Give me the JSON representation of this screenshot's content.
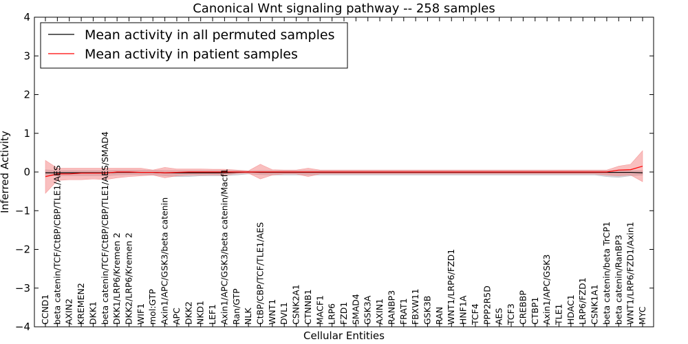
{
  "chart_data": {
    "type": "line",
    "title": "Canonical Wnt signaling pathway -- 258 samples",
    "xlabel": "Cellular Entities",
    "ylabel": "Inferred Activity",
    "ylim": [
      -4,
      4
    ],
    "yticks": [
      -4,
      -3,
      -2,
      -1,
      0,
      1,
      2,
      3,
      4
    ],
    "ytick_labels": [
      "−4",
      "−3",
      "−2",
      "−1",
      "0",
      "1",
      "2",
      "3",
      "4"
    ],
    "grid": false,
    "legend_position": "top-left",
    "categories": [
      "CCND1",
      "beta catenin/TCF/CtBP/CBP/TLE1/AES",
      "AXIN2",
      "KREMEN2",
      "DKK1",
      "beta catenin/TCF/CtBP/CBP/TLE1/AES/SMAD4",
      "DKK1/LRP6/Kremen 2",
      "DKK2/LRP6/Kremen 2",
      "WIF1",
      "mol:GTP",
      "Axin1/APC/GSK3/beta catenin",
      "APC",
      "DKK2",
      "NKD1",
      "LEF1",
      "Axin1/APC/GSK3/beta catenin/Macf1",
      "Ran/GTP",
      "NLK",
      "CtBP/CBP/TCF/TLE1/AES",
      "WNT1",
      "DVL1",
      "CSNK2A1",
      "CTNNB1",
      "MACF1",
      "LRP6",
      "FZD1",
      "SMAD4",
      "GSK3A",
      "AXIN1",
      "RANBP3",
      "FRAT1",
      "FBXW11",
      "GSK3B",
      "RAN",
      "WNT1/LRP6/FZD1",
      "HNF1A",
      "TCF4",
      "PPP2R5D",
      "AES",
      "TCF3",
      "CREBBP",
      "CTBP1",
      "Axin1/APC/GSK3",
      "TLE1",
      "HDAC1",
      "LRP6/FZD1",
      "CSNK1A1",
      "beta catenin/beta TrCP1",
      "beta catenin/RanBP3",
      "WNT1/LRP6/FZD1/Axin1",
      "MYC"
    ],
    "series": [
      {
        "name": "Mean activity in all permuted samples",
        "color": "#000000",
        "band_color": "#b0b0b8",
        "values": [
          -0.02,
          -0.02,
          -0.02,
          -0.02,
          -0.02,
          -0.02,
          -0.01,
          -0.01,
          -0.01,
          -0.01,
          -0.02,
          -0.02,
          -0.02,
          -0.02,
          -0.02,
          -0.02,
          -0.01,
          0.0,
          -0.01,
          -0.01,
          -0.01,
          -0.01,
          -0.01,
          -0.01,
          -0.01,
          -0.01,
          -0.01,
          -0.01,
          -0.01,
          -0.01,
          -0.01,
          -0.01,
          -0.01,
          -0.01,
          -0.01,
          -0.01,
          -0.01,
          -0.01,
          -0.01,
          -0.01,
          -0.01,
          -0.01,
          -0.01,
          -0.01,
          -0.01,
          -0.01,
          -0.01,
          -0.01,
          -0.01,
          -0.01,
          -0.02
        ],
        "band_upper": [
          0.06,
          0.04,
          0.04,
          0.04,
          0.04,
          0.04,
          0.05,
          0.05,
          0.05,
          0.05,
          0.04,
          0.04,
          0.04,
          0.04,
          0.04,
          0.04,
          0.04,
          0.03,
          0.04,
          0.04,
          0.04,
          0.04,
          0.04,
          0.04,
          0.04,
          0.04,
          0.04,
          0.04,
          0.04,
          0.04,
          0.04,
          0.04,
          0.04,
          0.04,
          0.04,
          0.04,
          0.04,
          0.04,
          0.04,
          0.04,
          0.04,
          0.04,
          0.04,
          0.04,
          0.04,
          0.04,
          0.04,
          0.04,
          0.04,
          0.04,
          0.04
        ],
        "band_lower": [
          -0.1,
          -0.1,
          -0.1,
          -0.1,
          -0.1,
          -0.1,
          -0.08,
          -0.07,
          -0.07,
          -0.08,
          -0.1,
          -0.12,
          -0.12,
          -0.1,
          -0.1,
          -0.1,
          -0.08,
          -0.05,
          -0.07,
          -0.08,
          -0.08,
          -0.08,
          -0.08,
          -0.08,
          -0.08,
          -0.08,
          -0.08,
          -0.08,
          -0.08,
          -0.08,
          -0.08,
          -0.08,
          -0.08,
          -0.08,
          -0.08,
          -0.08,
          -0.08,
          -0.08,
          -0.08,
          -0.08,
          -0.08,
          -0.08,
          -0.08,
          -0.08,
          -0.08,
          -0.08,
          -0.08,
          -0.12,
          -0.14,
          -0.1,
          -0.08
        ]
      },
      {
        "name": "Mean activity in patient samples",
        "color": "#ff0000",
        "band_color": "#f48080",
        "values": [
          -0.12,
          -0.05,
          -0.05,
          -0.03,
          -0.03,
          -0.03,
          0.0,
          0.0,
          -0.01,
          -0.01,
          -0.02,
          -0.01,
          0.0,
          0.0,
          0.0,
          0.0,
          0.0,
          0.0,
          0.0,
          0.0,
          0.0,
          0.0,
          0.0,
          0.0,
          0.0,
          0.0,
          0.0,
          0.0,
          0.0,
          0.0,
          0.0,
          0.0,
          0.0,
          0.0,
          0.0,
          0.0,
          0.0,
          0.0,
          0.0,
          0.0,
          0.0,
          0.0,
          0.0,
          0.0,
          0.0,
          0.0,
          0.0,
          0.0,
          0.05,
          0.06,
          0.15
        ],
        "band_upper": [
          0.3,
          0.1,
          0.1,
          0.1,
          0.1,
          0.1,
          0.1,
          0.1,
          0.1,
          0.05,
          0.12,
          0.08,
          0.08,
          0.08,
          0.07,
          0.07,
          0.05,
          0.03,
          0.2,
          0.06,
          0.05,
          0.05,
          0.1,
          0.05,
          0.05,
          0.05,
          0.05,
          0.05,
          0.05,
          0.05,
          0.05,
          0.05,
          0.05,
          0.05,
          0.05,
          0.05,
          0.05,
          0.05,
          0.05,
          0.05,
          0.05,
          0.05,
          0.05,
          0.05,
          0.05,
          0.05,
          0.05,
          0.05,
          0.15,
          0.2,
          0.55
        ],
        "band_lower": [
          -0.55,
          -0.22,
          -0.2,
          -0.2,
          -0.18,
          -0.2,
          -0.15,
          -0.12,
          -0.1,
          -0.08,
          -0.15,
          -0.1,
          -0.08,
          -0.08,
          -0.07,
          -0.08,
          -0.04,
          -0.03,
          -0.18,
          -0.08,
          -0.05,
          -0.05,
          -0.12,
          -0.05,
          -0.05,
          -0.05,
          -0.05,
          -0.05,
          -0.05,
          -0.05,
          -0.05,
          -0.05,
          -0.05,
          -0.05,
          -0.05,
          -0.05,
          -0.05,
          -0.05,
          -0.05,
          -0.05,
          -0.05,
          -0.05,
          -0.05,
          -0.05,
          -0.05,
          -0.05,
          -0.05,
          -0.08,
          -0.1,
          -0.08,
          -0.25
        ]
      }
    ]
  }
}
